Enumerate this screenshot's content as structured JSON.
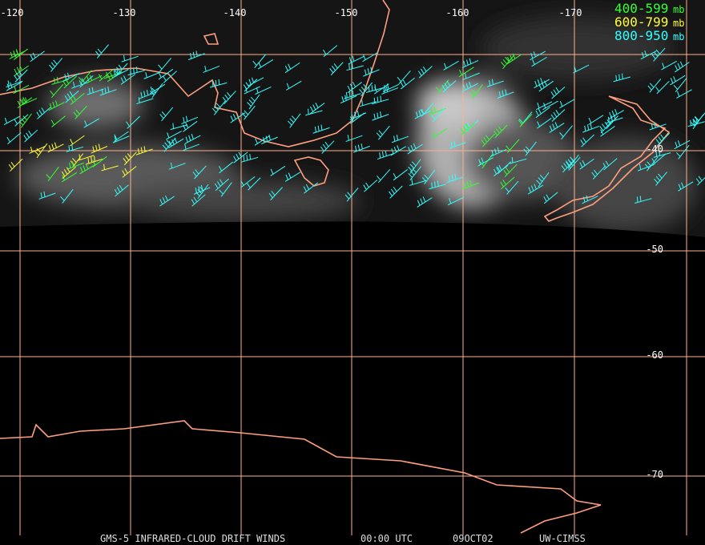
{
  "grid": {
    "longitudes": [
      "-120",
      "-130",
      "-140",
      "-150",
      "-160",
      "-170"
    ],
    "latitudes": [
      "-40",
      "-50",
      "-60",
      "-70"
    ]
  },
  "legend": [
    {
      "label": "400-599",
      "unit": "mb",
      "color": "#33ff33"
    },
    {
      "label": "600-799",
      "unit": "mb",
      "color": "#ffff33"
    },
    {
      "label": "800-950",
      "unit": "mb",
      "color": "#33ffff"
    }
  ],
  "footer": {
    "product": "GMS-5 INFRARED-CLOUD DRIFT WINDS",
    "time": "00:00 UTC",
    "date": "09OCT02",
    "source": "UW-CIMSS"
  }
}
